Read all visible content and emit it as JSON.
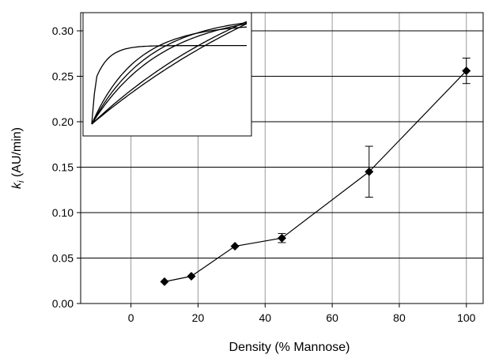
{
  "chart_data": {
    "type": "scatter",
    "title": "",
    "xlabel": "Density  (% Mannose)",
    "ylabel_main": "k",
    "ylabel_sub": "i",
    "ylabel_rest": " (AU/min)",
    "xlim": [
      -15,
      105
    ],
    "ylim": [
      0,
      0.32
    ],
    "xticks": [
      0,
      20,
      40,
      60,
      80,
      100
    ],
    "yticks": [
      0.0,
      0.05,
      0.1,
      0.15,
      0.2,
      0.25,
      0.3
    ],
    "xtick_labels": [
      "0",
      "20",
      "40",
      "60",
      "80",
      "100"
    ],
    "ytick_labels": [
      "0.00",
      "0.05",
      "0.10",
      "0.15",
      "0.20",
      "0.25",
      "0.30"
    ],
    "grid": true,
    "line_connected": true,
    "marker": "diamond",
    "series": [
      {
        "x": [
          10,
          18,
          31,
          45,
          71,
          100
        ],
        "y": [
          0.024,
          0.03,
          0.063,
          0.072,
          0.145,
          0.256
        ],
        "yerr": [
          0,
          0,
          0,
          0.005,
          0.028,
          0.014
        ]
      }
    ],
    "inset": {
      "description": "inset panel with six unlabeled kinetic traces",
      "curves": [
        {
          "kind": "fast-saturating",
          "k": 12,
          "amp": 0.42,
          "y0": 0.3
        },
        {
          "kind": "slow",
          "k": 1.6,
          "amp": 0.89,
          "y0": 0.0
        },
        {
          "kind": "slow",
          "k": 1.2,
          "amp": 0.93,
          "y0": 0.0
        },
        {
          "kind": "slow",
          "k": 1.0,
          "amp": 0.92,
          "y0": 0.0
        },
        {
          "kind": "near-linear",
          "k": 0.35,
          "amp": 0.94,
          "y0": 0.0
        },
        {
          "kind": "near-linear",
          "k": 0.25,
          "amp": 0.92,
          "y0": 0.0
        }
      ]
    }
  }
}
